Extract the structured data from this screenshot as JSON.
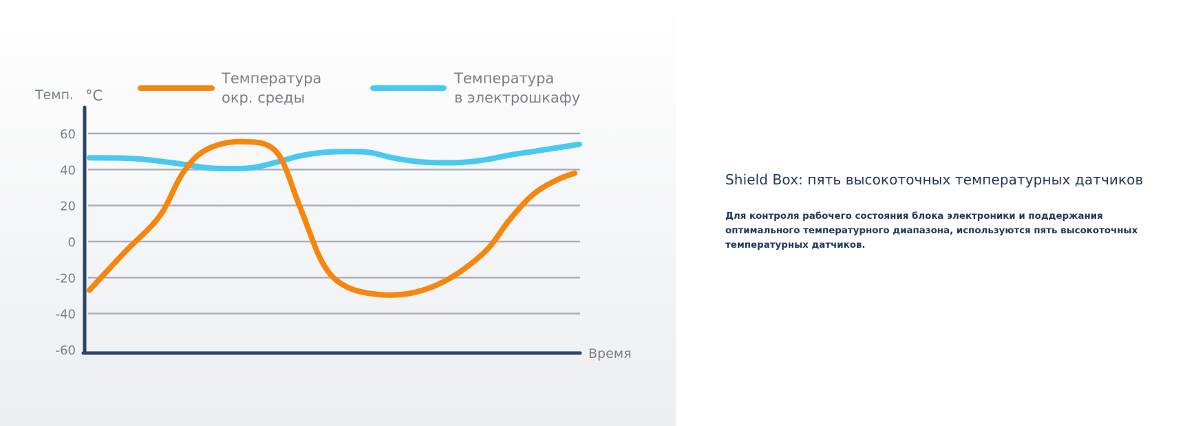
{
  "chart_data": {
    "type": "line",
    "ylabel": "Темп.",
    "yunit": "°C",
    "xlabel": "Время",
    "ylim": [
      -60,
      60
    ],
    "yticks": [
      "60",
      "40",
      "20",
      "0",
      "-20",
      "-40",
      "-60"
    ],
    "grid": true,
    "legend_position": "top",
    "series": [
      {
        "name": "Температура окр. среды",
        "name_lines": [
          "Температура",
          "окр. среды"
        ],
        "color": "#f7860f",
        "x": [
          0,
          1.5,
          3,
          4,
          5,
          6.5,
          8,
          9,
          10,
          11,
          12.5,
          14,
          15.5,
          17,
          18,
          19,
          20,
          20.8
        ],
        "values": [
          -27,
          -6,
          14,
          38,
          51,
          55.5,
          50,
          20,
          -12,
          -25,
          -29.5,
          -28,
          -20,
          -5,
          12,
          26,
          34,
          38
        ]
      },
      {
        "name": "Температура в электрошкафу",
        "name_lines": [
          "Температура",
          "в электрошкафу"
        ],
        "color": "#48c9f1",
        "x": [
          0,
          2,
          4,
          5,
          6,
          7,
          8,
          9,
          10,
          11,
          12,
          13,
          14,
          15,
          16,
          17,
          18,
          19,
          20,
          21
        ],
        "values": [
          46.5,
          46,
          43,
          41,
          40.5,
          41,
          44,
          47.5,
          49.5,
          50,
          49.5,
          46.5,
          44.5,
          43.8,
          44,
          45.5,
          48,
          50,
          52,
          54
        ]
      }
    ]
  },
  "info": {
    "title": "Shield Box: пять высокоточных температурных датчиков",
    "text": "Для контроля рабочего состояния блока электроники и поддержания оптимального температурного диапазона, используются пять высокоточных температурных датчиков."
  }
}
